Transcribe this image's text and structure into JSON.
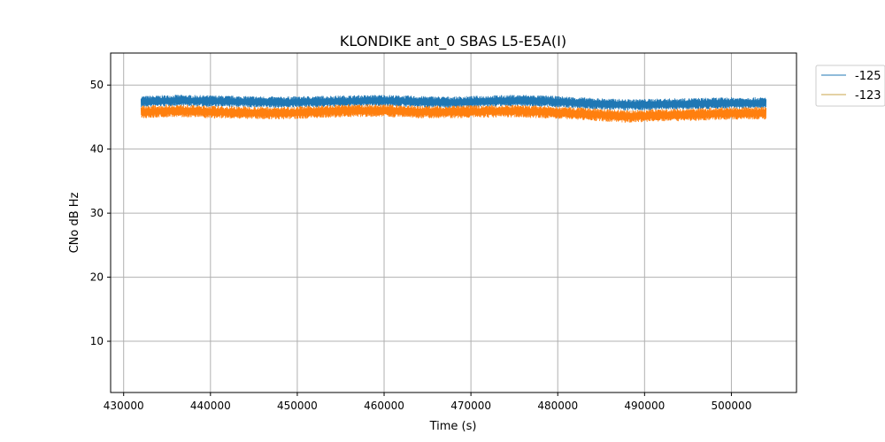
{
  "chart_data": {
    "type": "line",
    "title": "KLONDIKE ant_0 SBAS L5-E5A(I)",
    "xlabel": "Time (s)",
    "ylabel": "CNo dB Hz",
    "xlim": [
      428500,
      507500
    ],
    "ylim": [
      2,
      55
    ],
    "xticks": [
      430000,
      440000,
      450000,
      460000,
      470000,
      480000,
      490000,
      500000
    ],
    "yticks": [
      10,
      20,
      30,
      40,
      50
    ],
    "grid": true,
    "legend_placement": "outside-top-right",
    "x_range": [
      432000,
      504000
    ],
    "series": [
      {
        "name": "-125",
        "color": "#1f77b4",
        "legend_color": "#1f77b4",
        "noise_band": [
          46.5,
          48.3
        ],
        "x": [
          432000,
          436000,
          440000,
          444000,
          448000,
          452000,
          456000,
          460000,
          464000,
          468000,
          472000,
          476000,
          480000,
          484000,
          488000,
          492000,
          496000,
          500000,
          504000
        ],
        "y": [
          47.4,
          47.6,
          47.5,
          47.4,
          47.3,
          47.4,
          47.5,
          47.6,
          47.4,
          47.3,
          47.5,
          47.6,
          47.4,
          47.1,
          46.9,
          47.0,
          47.1,
          47.2,
          47.2
        ]
      },
      {
        "name": "-123",
        "color": "#ff7f0e",
        "legend_color": "#c8a64a",
        "noise_band": [
          44.8,
          46.8
        ],
        "x": [
          432000,
          436000,
          440000,
          444000,
          448000,
          452000,
          456000,
          460000,
          464000,
          468000,
          472000,
          476000,
          480000,
          484000,
          488000,
          492000,
          496000,
          500000,
          504000
        ],
        "y": [
          45.8,
          46.0,
          45.8,
          45.7,
          45.6,
          45.8,
          46.0,
          46.0,
          45.8,
          45.8,
          45.9,
          45.9,
          45.7,
          45.4,
          45.1,
          45.3,
          45.4,
          45.6,
          45.6
        ]
      }
    ]
  }
}
